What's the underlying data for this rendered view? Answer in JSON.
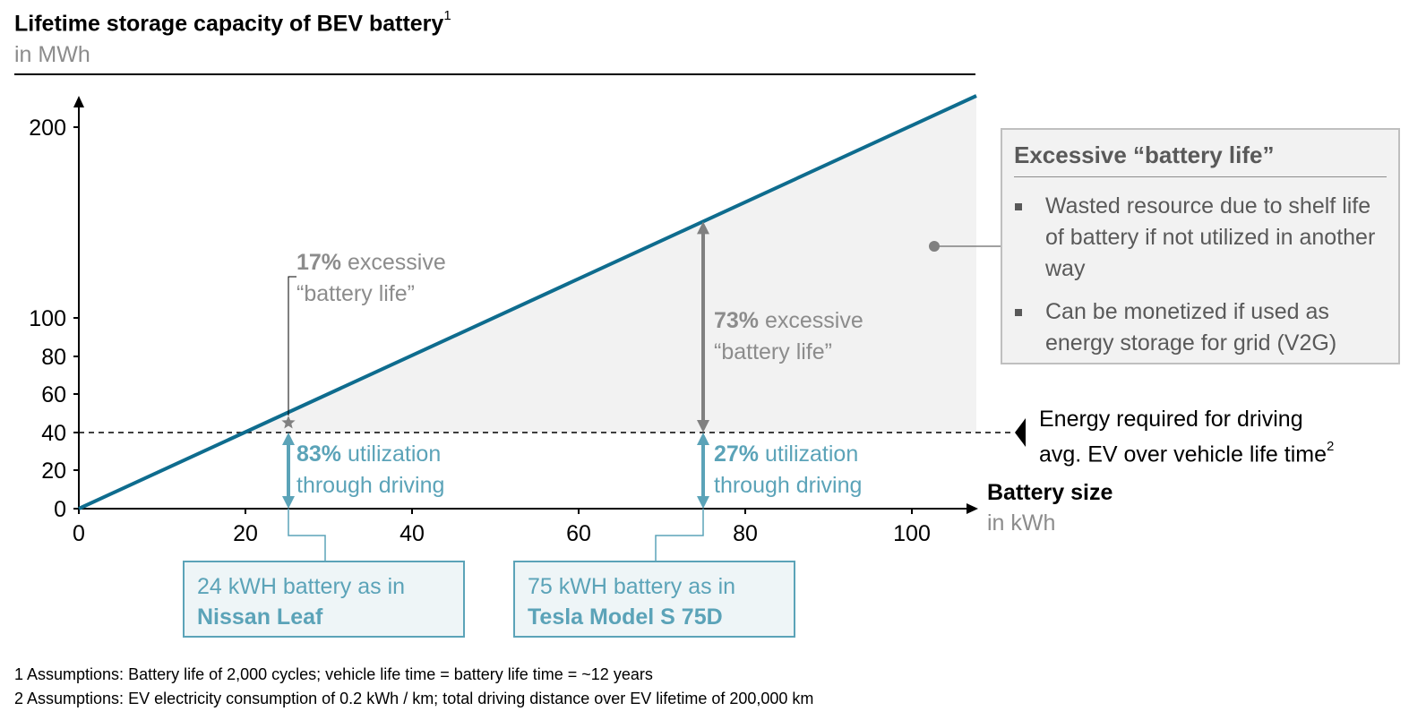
{
  "title": "Lifetime storage capacity of BEV battery",
  "title_footnote_ref": "1",
  "subtitle": "in MWh",
  "colors": {
    "line": "#0e6c8e",
    "excess_area": "#f2f2f2",
    "grey_text": "#8c8c8c",
    "teal_accent": "#5ba3b8",
    "box_border": "#bfbfbf"
  },
  "chart_data": {
    "type": "line",
    "x": [
      0,
      108
    ],
    "series": [
      {
        "values": [
          0,
          216
        ]
      }
    ],
    "reference_line": {
      "y": 40,
      "style": "dashed"
    },
    "xlabel": "Battery size",
    "xunit": "in kWh",
    "ylabel": "",
    "x_ticks": [
      "0",
      "20",
      "40",
      "60",
      "80",
      "100"
    ],
    "x_tick_values": [
      0,
      20,
      40,
      60,
      80,
      100
    ],
    "y_ticks": [
      "0",
      "20",
      "40",
      "60",
      "80",
      "100",
      "200"
    ],
    "y_tick_values": [
      0,
      20,
      40,
      60,
      80,
      100,
      200
    ],
    "xlim": [
      0,
      108
    ],
    "ylim": [
      0,
      216
    ],
    "grid": false,
    "markers": [
      {
        "x": 24,
        "y_low": 0,
        "y_ref": 40,
        "y_top": 48,
        "utilization_pct": "83%",
        "excess_pct": "17%"
      },
      {
        "x": 75,
        "y_low": 0,
        "y_ref": 40,
        "y_top": 150,
        "utilization_pct": "27%",
        "excess_pct": "73%"
      }
    ]
  },
  "annotations": {
    "excess_nissan": {
      "pct": "17%",
      "line1": "excessive",
      "line2": "“battery life”"
    },
    "excess_tesla": {
      "pct": "73%",
      "line1": "excessive",
      "line2": "“battery life”"
    },
    "util_nissan": {
      "pct": "83%",
      "line1": "utilization",
      "line2": "through driving"
    },
    "util_tesla": {
      "pct": "27%",
      "line1": "utilization",
      "line2": "through driving"
    }
  },
  "energy_required": {
    "line1": "Energy required for driving",
    "line2": "avg. EV over vehicle life time",
    "footnote_ref": "2"
  },
  "excess_box": {
    "title": "Excessive “battery life”",
    "bullets": [
      "Wasted resource due to shelf life of battery if not utilized in another way",
      "Can be monetized if used as energy storage for grid (V2G)"
    ]
  },
  "car_boxes": [
    {
      "line1": "24 kWH battery as in",
      "line2": "Nissan Leaf"
    },
    {
      "line1": "75 kWH battery as in",
      "line2": "Tesla Model S 75D"
    }
  ],
  "footnotes": [
    "1 Assumptions: Battery life of 2,000 cycles; vehicle life time = battery life time = ~12 years",
    "2 Assumptions: EV electricity consumption of 0.2 kWh / km;  total driving distance over EV lifetime of 200,000 km"
  ]
}
